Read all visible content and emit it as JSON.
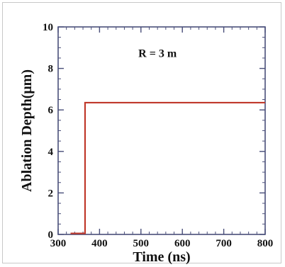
{
  "chart_data": {
    "type": "line",
    "title": "",
    "xlabel": "Time (ns)",
    "ylabel": "Ablation Depth(μm)",
    "xlim": [
      300,
      800
    ],
    "ylim": [
      0,
      10
    ],
    "x_ticks": [
      300,
      400,
      500,
      600,
      700,
      800
    ],
    "y_ticks": [
      0,
      2,
      4,
      6,
      8,
      10
    ],
    "grid": false,
    "annotation": "R = 3 m",
    "series": [
      {
        "color": "#c0392b",
        "points": [
          [
            330,
            0.05
          ],
          [
            365,
            0.05
          ],
          [
            365,
            6.35
          ],
          [
            800,
            6.35
          ]
        ]
      }
    ]
  }
}
